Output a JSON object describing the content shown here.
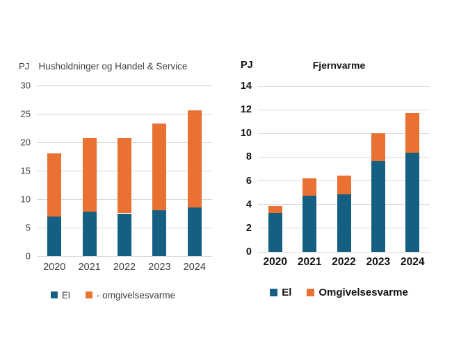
{
  "page": {
    "background": "#ffffff"
  },
  "colors": {
    "el": "#156082",
    "omgivelsesvarme": "#E97132",
    "gridline": "#D9D9D9",
    "left_chart_text": "#3F3F3F",
    "right_chart_text": "#121212"
  },
  "chart_data": [
    {
      "type": "bar",
      "stacked": true,
      "title": "Husholdninger og Handel & Service",
      "unit": "PJ",
      "categories": [
        "2020",
        "2021",
        "2022",
        "2023",
        "2024"
      ],
      "series": [
        {
          "name": "El",
          "color": "#156082",
          "values": [
            7.0,
            7.8,
            7.5,
            8.1,
            8.5
          ]
        },
        {
          "name": "- omgivelsesvarme",
          "color": "#E97132",
          "values": [
            11.1,
            12.9,
            13.2,
            15.2,
            17.1
          ]
        }
      ],
      "totals": [
        18.1,
        20.7,
        20.7,
        23.3,
        25.6
      ],
      "ylim": [
        0,
        30
      ],
      "ytick_step": 5,
      "grid": true,
      "legend_position": "bottom"
    },
    {
      "type": "bar",
      "stacked": true,
      "title": "Fjernvarme",
      "unit": "PJ",
      "categories": [
        "2020",
        "2021",
        "2022",
        "2023",
        "2024"
      ],
      "series": [
        {
          "name": "El",
          "color": "#156082",
          "values": [
            3.3,
            4.75,
            4.85,
            7.7,
            8.4
          ]
        },
        {
          "name": "Omgivelsesvarme",
          "color": "#E97132",
          "values": [
            0.55,
            1.45,
            1.6,
            2.3,
            3.3
          ]
        }
      ],
      "totals": [
        3.85,
        6.2,
        6.45,
        10.0,
        11.7
      ],
      "ylim": [
        0,
        14
      ],
      "ytick_step": 2,
      "grid": true,
      "legend_position": "bottom"
    }
  ]
}
